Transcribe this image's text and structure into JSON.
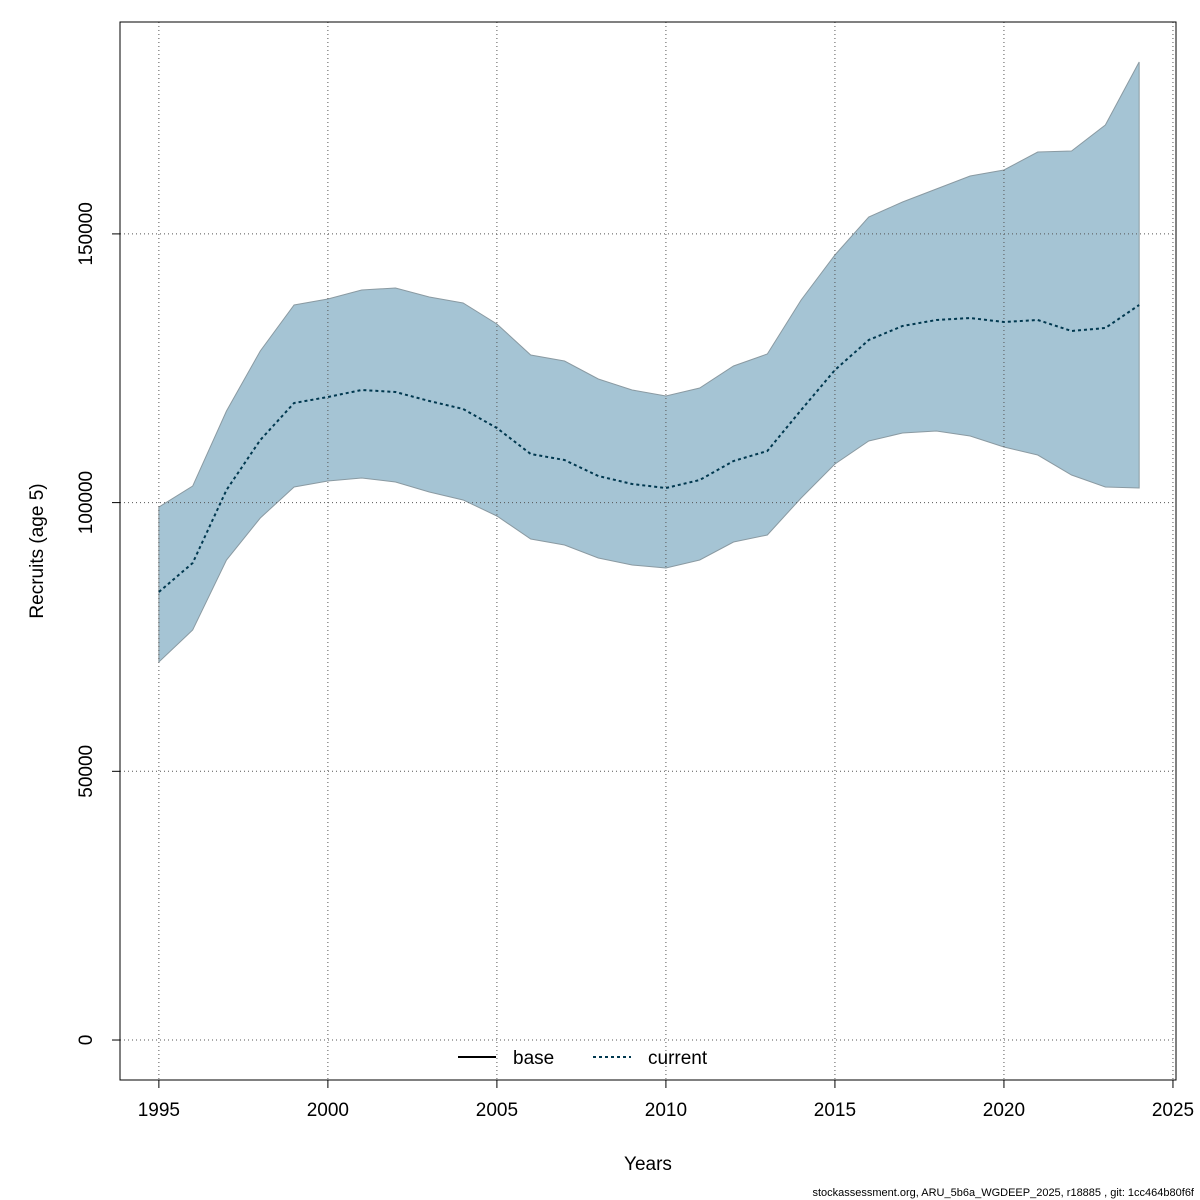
{
  "chart_data": {
    "type": "band-line",
    "x_label": "Years",
    "y_label": "Recruits (age 5)",
    "footnote": "stockassessment.org, ARU_5b6a_WGDEEP_2025, r18885 , git: 1cc464b80f6f",
    "x": [
      1995,
      1996,
      1997,
      1998,
      1999,
      2000,
      2001,
      2002,
      2003,
      2004,
      2005,
      2006,
      2007,
      2008,
      2009,
      2010,
      2011,
      2012,
      2013,
      2014,
      2015,
      2016,
      2017,
      2018,
      2019,
      2020,
      2021,
      2022,
      2023,
      2024
    ],
    "series": [
      {
        "name": "base",
        "color": "#000000",
        "dash": "solid",
        "values": [
          null,
          null,
          null,
          null,
          null,
          null,
          null,
          null,
          null,
          null,
          null,
          null,
          null,
          null,
          null,
          null,
          null,
          null,
          null,
          null,
          null,
          null,
          null,
          null,
          null,
          null,
          null,
          null,
          null,
          null
        ]
      },
      {
        "name": "current",
        "color": "#00384f",
        "dash": "dotted",
        "values": [
          83365,
          88760,
          102345,
          111650,
          118535,
          119650,
          120955,
          120580,
          118905,
          117420,
          113880,
          109045,
          107925,
          104950,
          103460,
          102715,
          104205,
          107740,
          109600,
          117230,
          124675,
          130255,
          132860,
          133980,
          134350,
          133605,
          133980,
          131935,
          132490,
          136770
        ]
      }
    ],
    "band": {
      "color": "#a5c4d4",
      "stroke": "#8a9aa2",
      "upper": [
        99180,
        103085,
        117045,
        128210,
        136770,
        137885,
        139560,
        139935,
        138260,
        137140,
        133235,
        127465,
        126350,
        123000,
        120955,
        119835,
        121325,
        125420,
        127650,
        137700,
        146075,
        153145,
        155935,
        158355,
        160775,
        161890,
        165240,
        165430,
        170265,
        181990
      ],
      "lower": [
        70340,
        76295,
        89320,
        97135,
        102905,
        104020,
        104580,
        103835,
        101975,
        100490,
        97510,
        93230,
        92115,
        89695,
        88395,
        87835,
        89320,
        92670,
        93975,
        100860,
        107185,
        111465,
        112955,
        113320,
        112390,
        110345,
        108855,
        105135,
        102905,
        102715
      ]
    },
    "xlim": [
      1993.85,
      2025.09
    ],
    "xticks": [
      1995,
      2000,
      2005,
      2010,
      2015,
      2020,
      2025
    ],
    "ylim": [
      -7440,
      189430
    ],
    "yticks": [
      0,
      50000,
      100000,
      150000
    ],
    "grid": true,
    "legend": "bottom"
  }
}
